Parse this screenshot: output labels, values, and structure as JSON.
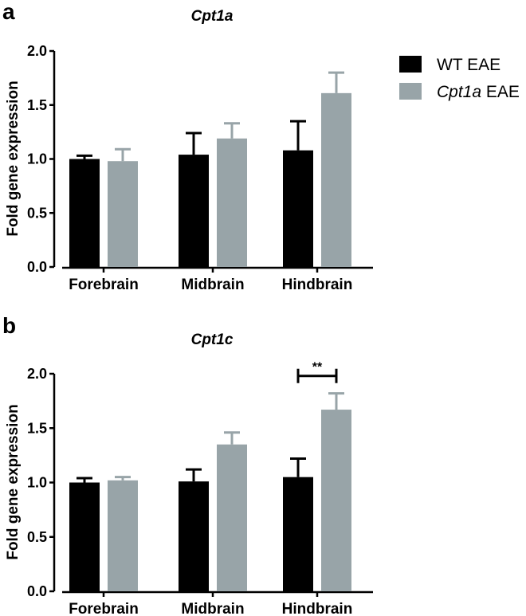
{
  "legend": {
    "entries": [
      {
        "prefix": "WT",
        "suffix": " EAE",
        "italic_prefix": false,
        "color": "#000000"
      },
      {
        "prefix": "Cpt1a",
        "suffix": " EAE",
        "italic_prefix": true,
        "color": "#98a4a8"
      }
    ]
  },
  "chart_data": [
    {
      "panel": "a",
      "type": "bar",
      "title": "Cpt1a",
      "xlabel": "",
      "ylabel": "Fold gene expression",
      "ylim": [
        0,
        2.0
      ],
      "yticks": [
        "0.0",
        "0.5",
        "1.0",
        "1.5",
        "2.0"
      ],
      "categories": [
        "Forebrain",
        "Midbrain",
        "Hindbrain"
      ],
      "series": [
        {
          "name": "WT EAE",
          "color": "#000000",
          "values": [
            1.0,
            1.04,
            1.08
          ],
          "errors": [
            0.03,
            0.2,
            0.27
          ]
        },
        {
          "name": "Cpt1a EAE",
          "color": "#98a4a8",
          "values": [
            0.98,
            1.19,
            1.61
          ],
          "errors": [
            0.11,
            0.14,
            0.19
          ]
        }
      ],
      "significance": []
    },
    {
      "panel": "b",
      "type": "bar",
      "title": "Cpt1c",
      "xlabel": "",
      "ylabel": "Fold gene expression",
      "ylim": [
        0,
        2.0
      ],
      "yticks": [
        "0.0",
        "0.5",
        "1.0",
        "1.5",
        "2.0"
      ],
      "categories": [
        "Forebrain",
        "Midbrain",
        "Hindbrain"
      ],
      "series": [
        {
          "name": "WT EAE",
          "color": "#000000",
          "values": [
            1.0,
            1.01,
            1.05
          ],
          "errors": [
            0.04,
            0.11,
            0.17
          ]
        },
        {
          "name": "Cpt1a EAE",
          "color": "#98a4a8",
          "values": [
            1.02,
            1.35,
            1.67
          ],
          "errors": [
            0.03,
            0.11,
            0.15
          ]
        }
      ],
      "significance": [
        {
          "category": "Hindbrain",
          "label": "**",
          "level": 1.98
        }
      ]
    }
  ]
}
